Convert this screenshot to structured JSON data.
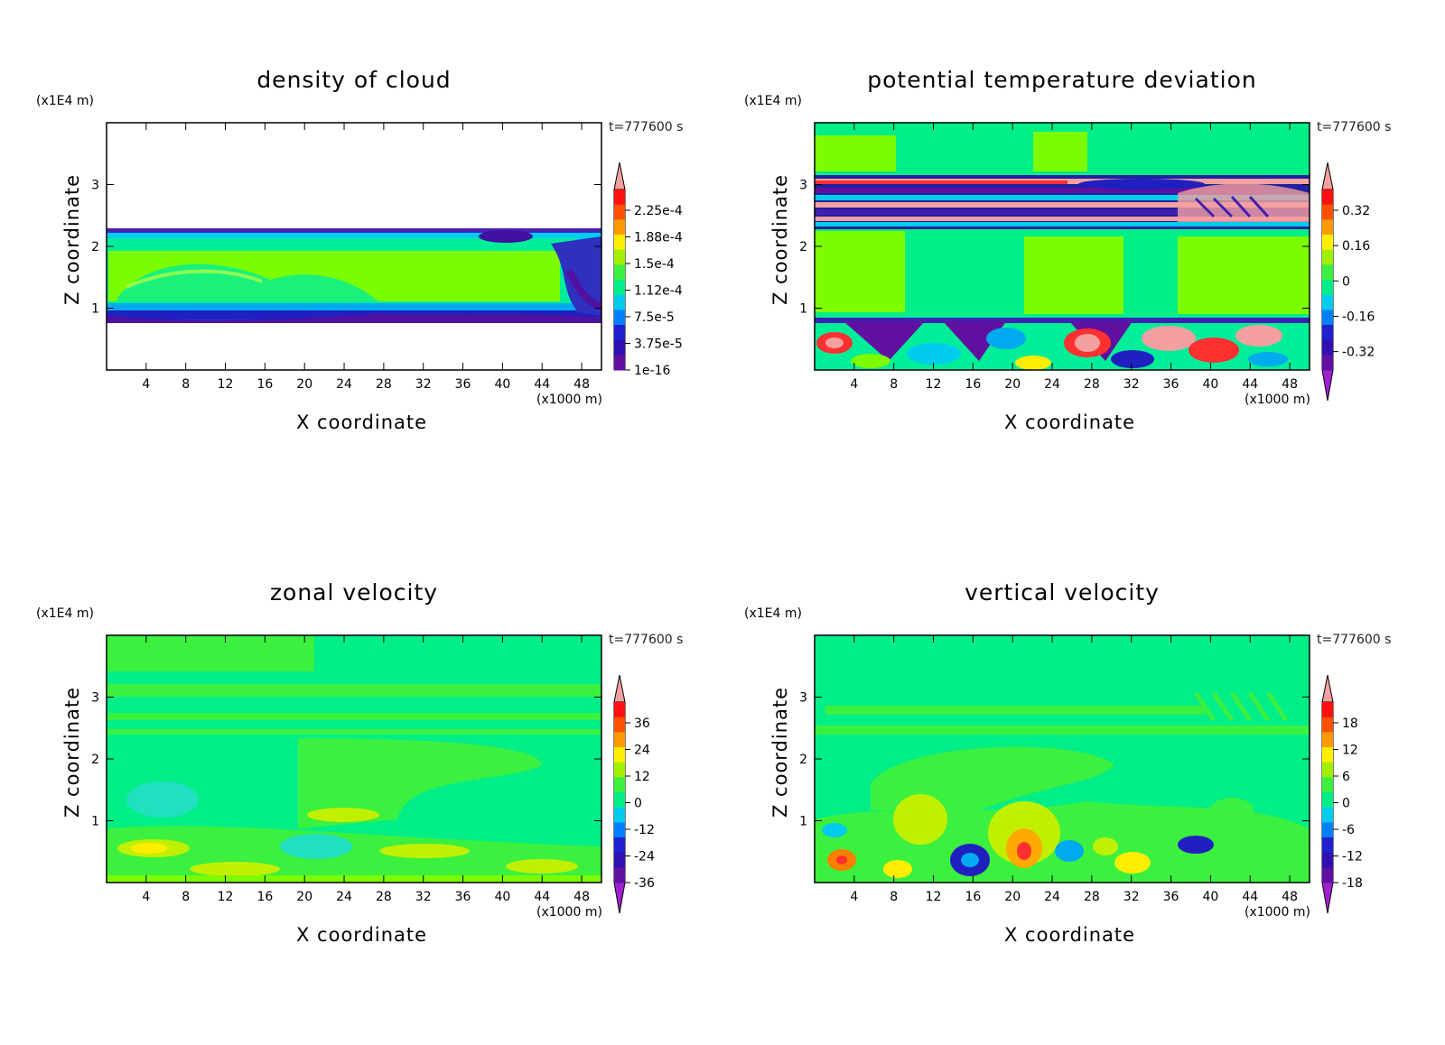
{
  "chart_data": [
    {
      "type": "heatmap",
      "title": "density of cloud",
      "xlabel": "X coordinate",
      "ylabel": "Z coordinate",
      "x_unit": "(x1000 m)",
      "y_unit": "(x1E4 m)",
      "time": "t=777600 s",
      "xlim": [
        0,
        50
      ],
      "ylim": [
        0,
        4
      ],
      "x_ticks": [
        "4",
        "8",
        "12",
        "16",
        "20",
        "24",
        "28",
        "32",
        "36",
        "40",
        "44",
        "48"
      ],
      "y_ticks": [
        "1",
        "2",
        "3"
      ],
      "colorbar_labels": [
        "2.25e-4",
        "1.88e-4",
        "1.5e-4",
        "1.12e-4",
        "7.5e-5",
        "3.75e-5",
        "1e-16"
      ],
      "background": "#ffffff",
      "colors": {
        "high": "#f4a0a0",
        "mid": "#7cfc00",
        "low": "#2020c0",
        "min": "#6010a0"
      }
    },
    {
      "type": "heatmap",
      "title": "potential temperature deviation",
      "xlabel": "X coordinate",
      "ylabel": "Z coordinate",
      "x_unit": "(x1000 m)",
      "y_unit": "(x1E4 m)",
      "time": "t=777600 s",
      "xlim": [
        0,
        50
      ],
      "ylim": [
        0,
        4
      ],
      "x_ticks": [
        "4",
        "8",
        "12",
        "16",
        "20",
        "24",
        "28",
        "32",
        "36",
        "40",
        "44",
        "48"
      ],
      "y_ticks": [
        "1",
        "2",
        "3"
      ],
      "colorbar_labels": [
        "0.32",
        "0.16",
        "0",
        "-0.16",
        "-0.32"
      ],
      "background": "#00ee88"
    },
    {
      "type": "heatmap",
      "title": "zonal velocity",
      "xlabel": "X coordinate",
      "ylabel": "Z coordinate",
      "x_unit": "(x1000 m)",
      "y_unit": "(x1E4 m)",
      "time": "t=777600 s",
      "xlim": [
        0,
        50
      ],
      "ylim": [
        0,
        4
      ],
      "x_ticks": [
        "4",
        "8",
        "12",
        "16",
        "20",
        "24",
        "28",
        "32",
        "36",
        "40",
        "44",
        "48"
      ],
      "y_ticks": [
        "1",
        "2",
        "3"
      ],
      "colorbar_labels": [
        "36",
        "24",
        "12",
        "0",
        "-12",
        "-24",
        "-36"
      ],
      "background": "#00ee88"
    },
    {
      "type": "heatmap",
      "title": "vertical velocity",
      "xlabel": "X coordinate",
      "ylabel": "Z coordinate",
      "x_unit": "(x1000 m)",
      "y_unit": "(x1E4 m)",
      "time": "t=777600 s",
      "xlim": [
        0,
        50
      ],
      "ylim": [
        0,
        4
      ],
      "x_ticks": [
        "4",
        "8",
        "12",
        "16",
        "20",
        "24",
        "28",
        "32",
        "36",
        "40",
        "44",
        "48"
      ],
      "y_ticks": [
        "1",
        "2",
        "3"
      ],
      "colorbar_labels": [
        "18",
        "12",
        "6",
        "0",
        "-6",
        "-12",
        "-18"
      ],
      "background": "#00ee88"
    }
  ]
}
